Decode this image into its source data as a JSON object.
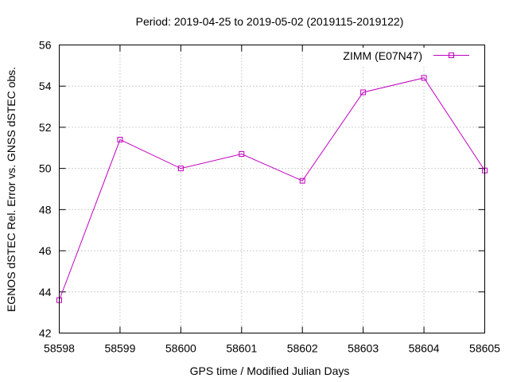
{
  "chart_data": {
    "type": "line",
    "title": "Period: 2019-04-25 to 2019-05-02 (2019115-2019122)",
    "xlabel": "GPS time / Modified Julian Days",
    "ylabel": "EGNOS dSTEC Rel. Error vs. GNSS dSTEC obs.",
    "xlim": [
      58598,
      58605
    ],
    "ylim": [
      42,
      56
    ],
    "xticks": [
      "58598",
      "58599",
      "58600",
      "58601",
      "58602",
      "58603",
      "58604",
      "58605"
    ],
    "yticks": [
      "42",
      "44",
      "46",
      "48",
      "50",
      "52",
      "54",
      "56"
    ],
    "grid": true,
    "legend_position": "top-right",
    "series": [
      {
        "name": "ZIMM (E07N47)",
        "color": "#c000c0",
        "marker": "open-square",
        "x": [
          58598,
          58599,
          58600,
          58601,
          58602,
          58603,
          58604,
          58605
        ],
        "y": [
          43.6,
          51.4,
          50.0,
          50.7,
          49.4,
          53.7,
          54.4,
          49.9
        ]
      }
    ]
  }
}
